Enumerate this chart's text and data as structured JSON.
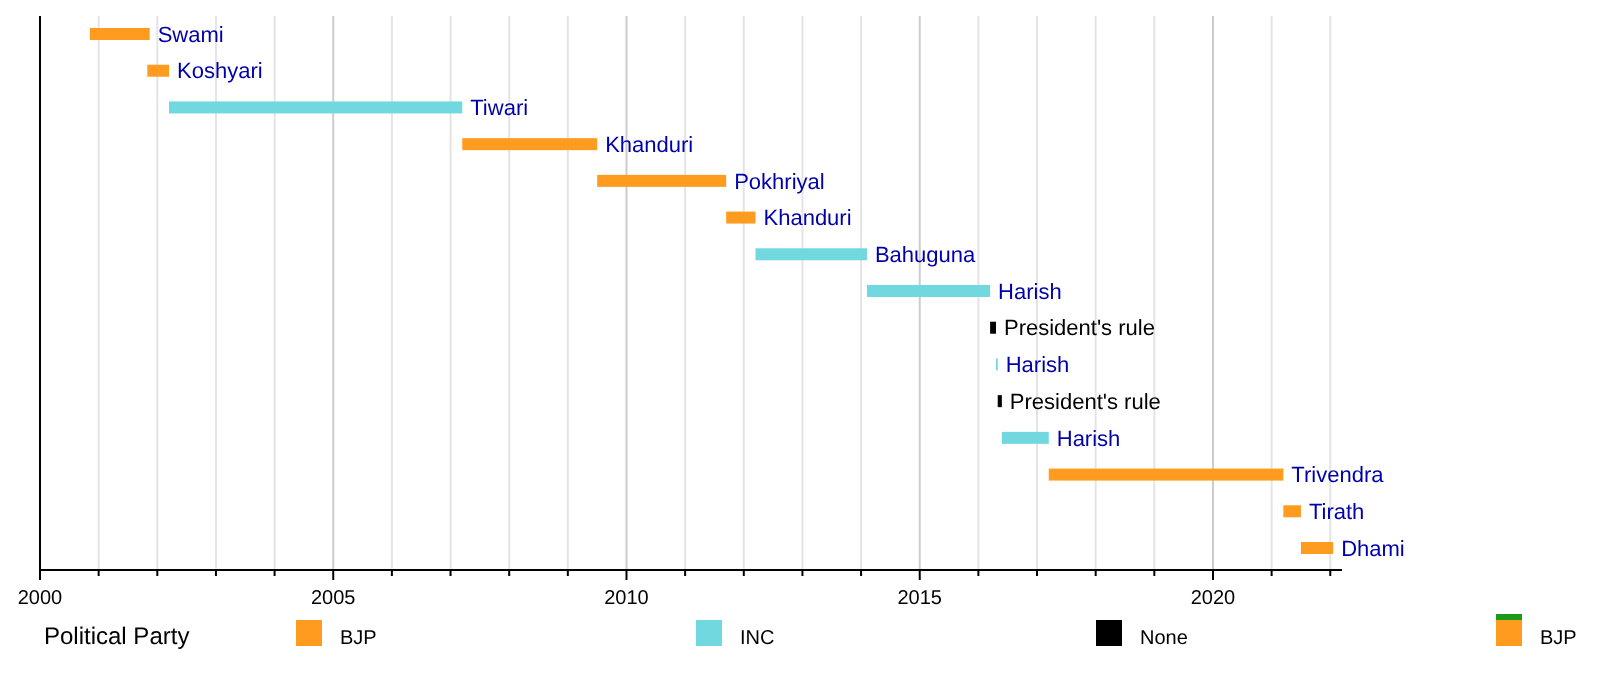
{
  "chart_data": {
    "type": "bar",
    "orientation": "horizontal",
    "legend_title": "Political Party",
    "legend": "bottom",
    "grid": "x",
    "tick_labels": "x",
    "categories": [
      "Swami",
      "Koshyari",
      "Tiwari",
      "Khanduri",
      "Pokhriyal",
      "Khanduri",
      "Bahuguna",
      "Harish",
      "President's rule",
      "Harish",
      "President's rule",
      "Harish",
      "Trivendra",
      "Tirath",
      "Dhami"
    ],
    "xlim": [
      2000,
      2022.2
    ],
    "xticks": [
      2000,
      {
        "value": 2001,
        "label": null
      },
      {
        "value": 2002,
        "label": null
      },
      {
        "value": 2003,
        "label": null
      },
      {
        "value": 2004,
        "label": null
      },
      2005,
      {
        "value": 2006,
        "label": null
      },
      {
        "value": 2007,
        "label": null
      },
      {
        "value": 2008,
        "label": null
      },
      {
        "value": 2009,
        "label": null
      },
      2010,
      {
        "value": 2011,
        "label": null
      },
      {
        "value": 2012,
        "label": null
      },
      {
        "value": 2013,
        "label": null
      },
      {
        "value": 2014,
        "label": null
      },
      2015,
      {
        "value": 2016,
        "label": null
      },
      {
        "value": 2017,
        "label": null
      },
      {
        "value": 2018,
        "label": null
      },
      {
        "value": 2019,
        "label": null
      },
      2020,
      {
        "value": 2021,
        "label": null
      },
      {
        "value": 2022,
        "label": null
      }
    ],
    "series": [
      {
        "name": "BJP",
        "color": "#ff9c1f",
        "base": [
          2000.85,
          2001.83,
          null,
          2007.2,
          2009.5,
          2011.7,
          null,
          null,
          null,
          null,
          null,
          null,
          2017.2,
          2021.2,
          2021.5
        ],
        "values": [
          1.02,
          0.37,
          null,
          2.3,
          2.2,
          0.5,
          null,
          null,
          null,
          null,
          null,
          null,
          4.0,
          0.3,
          0.55
        ]
      },
      {
        "name": "INC",
        "color": "#70d8de",
        "base": [
          null,
          null,
          2002.2,
          null,
          null,
          null,
          2012.2,
          2014.1,
          null,
          2016.3,
          null,
          2016.4,
          null,
          null,
          null
        ],
        "values": [
          null,
          null,
          5.0,
          null,
          null,
          null,
          1.9,
          2.1,
          null,
          0.03,
          null,
          0.8,
          null,
          null,
          null
        ]
      },
      {
        "name": "None",
        "color": "#000000",
        "base": [
          null,
          null,
          null,
          null,
          null,
          null,
          null,
          null,
          2016.2,
          null,
          2016.33,
          null,
          null,
          null,
          null
        ],
        "values": [
          null,
          null,
          null,
          null,
          null,
          null,
          null,
          null,
          0.1,
          null,
          0.07,
          null,
          null,
          null,
          null
        ]
      },
      {
        "name": "BJP",
        "color": "#ff9c1f",
        "values": [
          null,
          null,
          null,
          null,
          null,
          null,
          null,
          null,
          null,
          null,
          null,
          null,
          null,
          null,
          null
        ]
      }
    ]
  }
}
